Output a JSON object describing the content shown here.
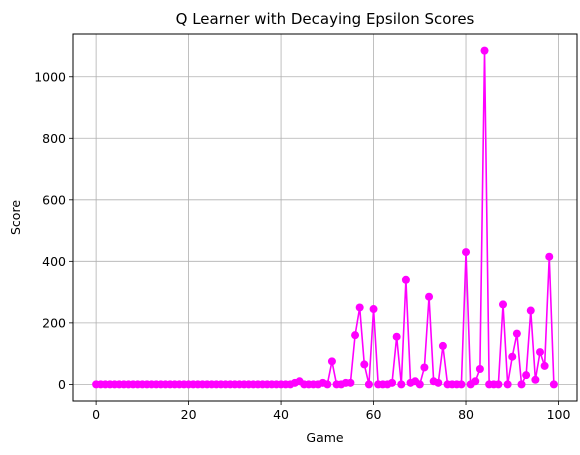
{
  "chart_data": {
    "type": "line",
    "title": "Q Learner with Decaying Epsilon Scores",
    "xlabel": "Game",
    "ylabel": "Score",
    "xlim": [
      -5,
      104
    ],
    "ylim": [
      -54,
      1139
    ],
    "x_ticks": [
      0,
      20,
      40,
      60,
      80,
      100
    ],
    "y_ticks": [
      0,
      200,
      400,
      600,
      800,
      1000
    ],
    "x_tick_labels": [
      "0",
      "20",
      "40",
      "60",
      "80",
      "100"
    ],
    "y_tick_labels": [
      "0",
      "200",
      "400",
      "600",
      "800",
      "1000"
    ],
    "grid": true,
    "color": "#ff00ff",
    "marker": "circle",
    "series": [
      {
        "x": [
          0,
          1,
          2,
          3,
          4,
          5,
          6,
          7,
          8,
          9,
          10,
          11,
          12,
          13,
          14,
          15,
          16,
          17,
          18,
          19,
          20,
          21,
          22,
          23,
          24,
          25,
          26,
          27,
          28,
          29,
          30,
          31,
          32,
          33,
          34,
          35,
          36,
          37,
          38,
          39,
          40,
          41,
          42,
          43,
          44,
          45,
          46,
          47,
          48,
          49,
          50,
          51,
          52,
          53,
          54,
          55,
          56,
          57,
          58,
          59,
          60,
          61,
          62,
          63,
          64,
          65,
          66,
          67,
          68,
          69,
          70,
          71,
          72,
          73,
          74,
          75,
          76,
          77,
          78,
          79,
          80,
          81,
          82,
          83,
          84,
          85,
          86,
          87,
          88,
          89,
          90,
          91,
          92,
          93,
          94,
          95,
          96,
          97,
          98,
          99
        ],
        "values": [
          0,
          0,
          0,
          0,
          0,
          0,
          0,
          0,
          0,
          0,
          0,
          0,
          0,
          0,
          0,
          0,
          0,
          0,
          0,
          0,
          0,
          0,
          0,
          0,
          0,
          0,
          0,
          0,
          0,
          0,
          0,
          0,
          0,
          0,
          0,
          0,
          0,
          0,
          0,
          0,
          0,
          0,
          0,
          5,
          10,
          0,
          0,
          0,
          0,
          5,
          0,
          75,
          0,
          0,
          5,
          5,
          160,
          250,
          65,
          0,
          245,
          0,
          0,
          0,
          5,
          155,
          0,
          340,
          5,
          10,
          0,
          55,
          285,
          10,
          5,
          125,
          0,
          0,
          0,
          0,
          430,
          0,
          10,
          50,
          1085,
          0,
          0,
          0,
          260,
          0,
          90,
          165,
          0,
          30,
          240,
          15,
          105,
          60,
          415,
          0
        ]
      }
    ]
  }
}
